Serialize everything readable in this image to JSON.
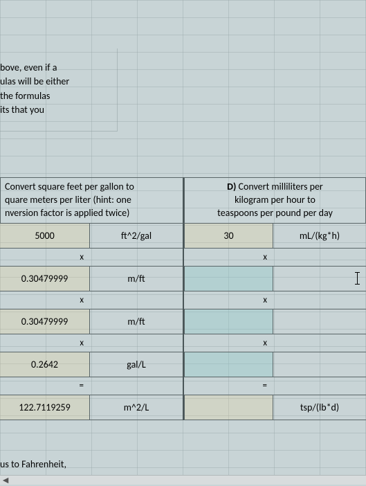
{
  "colors": {
    "background": "#c8d4d6",
    "gridline": "rgba(150,165,168,0.4)",
    "border": "#5a6668",
    "value_fill": "rgba(230,210,150,0.25)",
    "green_fill": "rgba(140,200,200,0.35)"
  },
  "top_text": {
    "line1": "bove, even if a",
    "line2": "ulas will be either",
    "line3": "the formulas",
    "line4": "its that you"
  },
  "header_c": {
    "line1": "Convert square feet per gallon to",
    "line2": "quare meters per liter (hint: one",
    "line3": "nversion factor is applied twice)"
  },
  "header_d": {
    "prefix": "D)",
    "line1": " Convert milliliters per",
    "line2": "kilogram per hour to",
    "line3": "teaspoons per pound per day"
  },
  "left_table": {
    "rows": [
      {
        "value": "5000",
        "unit": "ft^2/gal"
      },
      {
        "op": "x"
      },
      {
        "value": "0.30479999",
        "unit": "m/ft"
      },
      {
        "op": "x"
      },
      {
        "value": "0.30479999",
        "unit": "m/ft"
      },
      {
        "op": "x"
      },
      {
        "value": "0.2642",
        "unit": "gal/L"
      },
      {
        "op": "="
      },
      {
        "value": "122.7119259",
        "unit": "m^2/L"
      }
    ]
  },
  "right_table": {
    "rows": [
      {
        "value": "30",
        "unit": "mL/(kg*h)"
      },
      {
        "op": "x"
      },
      {
        "value": "",
        "unit": "",
        "green": true,
        "cursor": true
      },
      {
        "op": "x"
      },
      {
        "value": "",
        "unit": "",
        "green": true
      },
      {
        "op": "x"
      },
      {
        "value": "",
        "unit": "",
        "green": true
      },
      {
        "op": "="
      },
      {
        "value": "",
        "unit": "tsp/(lb*d)"
      }
    ]
  },
  "bottom_text": "us to Fahrenheit,",
  "scroll_arrow": "◄"
}
